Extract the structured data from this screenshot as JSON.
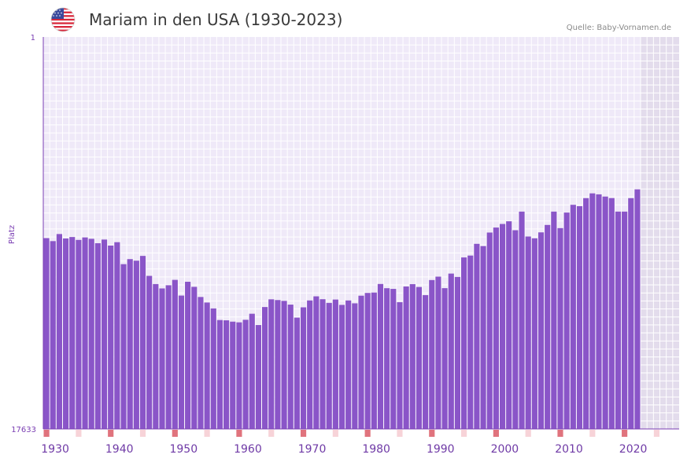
{
  "header": {
    "title": "Mariam in den USA (1930-2023)",
    "source": "Quelle: Baby-Vornamen.de",
    "flag_icon": "usa-flag-icon"
  },
  "colors": {
    "bar": "#8a55c8",
    "plot_bg": "#efe9f8",
    "grid": "#ffffff",
    "future_bg": "#e3dcec",
    "accent": "#7b3fb3",
    "decade_marker": "#e0737d",
    "half_marker": "#f7d3d8"
  },
  "chart_data": {
    "type": "bar",
    "title": "Mariam in den USA (1930-2023)",
    "xlabel": "",
    "ylabel": "Platz",
    "y_axis_inverted": true,
    "ylim": [
      1,
      17633
    ],
    "y_tick_labels": [
      "1",
      "17633"
    ],
    "x_tick_labels": [
      "1930",
      "1940",
      "1950",
      "1960",
      "1970",
      "1980",
      "1990",
      "2000",
      "2010",
      "2020"
    ],
    "x_range": [
      1930,
      2028
    ],
    "categories": [
      1930,
      1931,
      1932,
      1933,
      1934,
      1935,
      1936,
      1937,
      1938,
      1939,
      1940,
      1941,
      1942,
      1943,
      1944,
      1945,
      1946,
      1947,
      1948,
      1949,
      1950,
      1951,
      1952,
      1953,
      1954,
      1955,
      1956,
      1957,
      1958,
      1959,
      1960,
      1961,
      1962,
      1963,
      1964,
      1965,
      1966,
      1967,
      1968,
      1969,
      1970,
      1971,
      1972,
      1973,
      1974,
      1975,
      1976,
      1977,
      1978,
      1979,
      1980,
      1981,
      1982,
      1983,
      1984,
      1985,
      1986,
      1987,
      1988,
      1989,
      1990,
      1991,
      1992,
      1993,
      1994,
      1995,
      1996,
      1997,
      1998,
      1999,
      2000,
      2001,
      2002,
      2003,
      2004,
      2005,
      2006,
      2007,
      2008,
      2009,
      2010,
      2011,
      2012,
      2013,
      2014,
      2015,
      2016,
      2017,
      2018,
      2019,
      2020,
      2021,
      2022
    ],
    "values": [
      9049,
      9183,
      8865,
      9065,
      8999,
      9129,
      9016,
      9080,
      9278,
      9113,
      9383,
      9232,
      10220,
      9993,
      10064,
      9849,
      10747,
      11116,
      11312,
      11168,
      10927,
      11633,
      11012,
      11241,
      11697,
      11947,
      12213,
      12734,
      12747,
      12807,
      12838,
      12723,
      12451,
      12957,
      12149,
      11802,
      11836,
      11872,
      12040,
      12624,
      12163,
      11853,
      11668,
      11797,
      11964,
      11812,
      12053,
      11854,
      11983,
      11639,
      11515,
      11498,
      11112,
      11302,
      11333,
      11930,
      11225,
      11120,
      11248,
      11614,
      10935,
      10782,
      11300,
      10644,
      10794,
      9918,
      9833,
      9306,
      9406,
      8798,
      8573,
      8412,
      8291,
      8694,
      7856,
      8977,
      9057,
      8790,
      8456,
      7856,
      8599,
      7900,
      7550,
      7612,
      7250,
      7035,
      7080,
      7179,
      7247,
      7856,
      7856,
      7250,
      6854
    ]
  }
}
